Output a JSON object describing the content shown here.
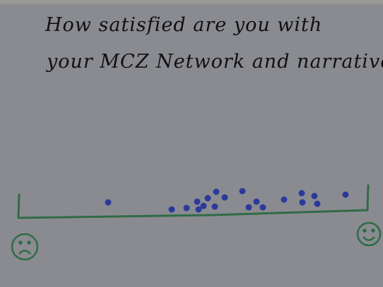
{
  "question": {
    "line1": "How satisfied are you with",
    "line2": "your MCZ Network and narrative?"
  }
}
